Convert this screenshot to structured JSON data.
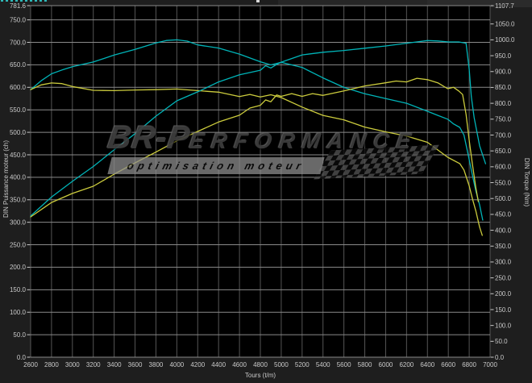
{
  "watermark": {
    "brand_prefix": "BR-P",
    "brand_rest": "ERFORMANCE",
    "tagline": "optimisation moteur"
  },
  "chart_data": {
    "type": "line",
    "title": "",
    "xlabel": "Tours (t/m)",
    "ylabel_left": "DIN Puissance moteur (ch)",
    "ylabel_right": "DIN Torque (Nm)",
    "x_range": [
      2600,
      7000
    ],
    "x_ticks": [
      2600,
      2800,
      3000,
      3200,
      3400,
      3600,
      3800,
      4000,
      4200,
      4400,
      4600,
      4800,
      5000,
      5200,
      5400,
      5600,
      5800,
      6000,
      6200,
      6400,
      6600,
      6800,
      7000
    ],
    "y_left_range": [
      0,
      781.6
    ],
    "y_left_ticks": [
      781.6,
      750,
      700,
      650,
      600,
      550,
      500,
      450,
      400,
      350,
      300,
      250,
      200,
      150,
      100,
      50,
      0
    ],
    "y_right_range": [
      0,
      1107.7
    ],
    "y_right_ticks": [
      1107.7,
      1050,
      1000,
      950,
      900,
      850,
      800,
      750,
      700,
      650,
      600,
      550,
      500,
      450,
      400,
      350,
      300,
      250,
      200,
      150,
      100,
      50,
      0
    ],
    "grid": true,
    "legend_position": "none",
    "colors": {
      "plot_bg": "#000000",
      "grid_h": "#8a8a8a",
      "grid_v": "#555555",
      "tick_text": "#c9c9c9",
      "cyan_series": "#00b4b8",
      "yellow_series": "#cccc3d"
    },
    "series": [
      {
        "name": "torque-modified",
        "axis": "right",
        "color": "#00b4b8",
        "points": [
          [
            2600,
            843
          ],
          [
            2700,
            871
          ],
          [
            2800,
            893
          ],
          [
            2900,
            905
          ],
          [
            3000,
            915
          ],
          [
            3100,
            923
          ],
          [
            3200,
            930
          ],
          [
            3400,
            952
          ],
          [
            3600,
            970
          ],
          [
            3800,
            990
          ],
          [
            3900,
            998
          ],
          [
            4000,
            1000
          ],
          [
            4100,
            996
          ],
          [
            4200,
            984
          ],
          [
            4400,
            974
          ],
          [
            4600,
            955
          ],
          [
            4800,
            931
          ],
          [
            4900,
            921
          ],
          [
            5000,
            929
          ],
          [
            5100,
            921
          ],
          [
            5200,
            913
          ],
          [
            5400,
            880
          ],
          [
            5600,
            850
          ],
          [
            5800,
            830
          ],
          [
            6000,
            815
          ],
          [
            6200,
            800
          ],
          [
            6400,
            775
          ],
          [
            6500,
            762
          ],
          [
            6594,
            750
          ],
          [
            6650,
            735
          ],
          [
            6710,
            724
          ],
          [
            6750,
            700
          ],
          [
            6787,
            643
          ],
          [
            6820,
            590
          ],
          [
            6864,
            523
          ],
          [
            6900,
            480
          ],
          [
            6930,
            432
          ]
        ]
      },
      {
        "name": "torque-original",
        "axis": "right",
        "color": "#cccc3d",
        "points": [
          [
            2600,
            843
          ],
          [
            2700,
            858
          ],
          [
            2800,
            864
          ],
          [
            2900,
            862
          ],
          [
            3000,
            853
          ],
          [
            3200,
            841
          ],
          [
            3400,
            840
          ],
          [
            3600,
            842
          ],
          [
            3800,
            843
          ],
          [
            4000,
            845
          ],
          [
            4200,
            840
          ],
          [
            4400,
            835
          ],
          [
            4600,
            821
          ],
          [
            4700,
            828
          ],
          [
            4800,
            820
          ],
          [
            4900,
            827
          ],
          [
            5000,
            818
          ],
          [
            5200,
            788
          ],
          [
            5400,
            762
          ],
          [
            5600,
            748
          ],
          [
            5800,
            725
          ],
          [
            6000,
            710
          ],
          [
            6200,
            697
          ],
          [
            6400,
            677
          ],
          [
            6594,
            630
          ],
          [
            6710,
            610
          ],
          [
            6750,
            590
          ],
          [
            6800,
            540
          ],
          [
            6830,
            500
          ],
          [
            6864,
            460
          ],
          [
            6900,
            410
          ],
          [
            6925,
            384
          ]
        ]
      },
      {
        "name": "power-modified",
        "axis": "left",
        "color": "#00b4b8",
        "points": [
          [
            2600,
            314
          ],
          [
            2800,
            356
          ],
          [
            3000,
            391
          ],
          [
            3200,
            424
          ],
          [
            3400,
            461
          ],
          [
            3600,
            497
          ],
          [
            3800,
            536
          ],
          [
            4000,
            570
          ],
          [
            4200,
            590
          ],
          [
            4400,
            612
          ],
          [
            4600,
            628
          ],
          [
            4800,
            638
          ],
          [
            4850,
            648
          ],
          [
            4900,
            643
          ],
          [
            4956,
            651
          ],
          [
            5000,
            656
          ],
          [
            5200,
            672
          ],
          [
            5400,
            678
          ],
          [
            5600,
            682
          ],
          [
            5800,
            687
          ],
          [
            6000,
            692
          ],
          [
            6200,
            698
          ],
          [
            6400,
            704
          ],
          [
            6500,
            703
          ],
          [
            6600,
            701
          ],
          [
            6700,
            701
          ],
          [
            6770,
            698
          ],
          [
            6800,
            640
          ],
          [
            6820,
            580
          ],
          [
            6847,
            533
          ],
          [
            6900,
            470
          ],
          [
            6957,
            430
          ]
        ]
      },
      {
        "name": "power-original",
        "axis": "left",
        "color": "#cccc3d",
        "points": [
          [
            2600,
            312
          ],
          [
            2800,
            344
          ],
          [
            3000,
            364
          ],
          [
            3200,
            380
          ],
          [
            3400,
            407
          ],
          [
            3600,
            432
          ],
          [
            3800,
            456
          ],
          [
            4000,
            481
          ],
          [
            4200,
            502
          ],
          [
            4400,
            523
          ],
          [
            4600,
            538
          ],
          [
            4700,
            554
          ],
          [
            4800,
            560
          ],
          [
            4850,
            572
          ],
          [
            4900,
            568
          ],
          [
            4956,
            583
          ],
          [
            5000,
            580
          ],
          [
            5100,
            586
          ],
          [
            5200,
            580
          ],
          [
            5300,
            586
          ],
          [
            5400,
            582
          ],
          [
            5600,
            592
          ],
          [
            5800,
            603
          ],
          [
            6000,
            610
          ],
          [
            6100,
            614
          ],
          [
            6200,
            612
          ],
          [
            6300,
            620
          ],
          [
            6400,
            617
          ],
          [
            6500,
            610
          ],
          [
            6594,
            597
          ],
          [
            6650,
            600
          ],
          [
            6700,
            592
          ],
          [
            6737,
            584
          ],
          [
            6770,
            540
          ],
          [
            6800,
            482
          ],
          [
            6830,
            430
          ],
          [
            6864,
            376
          ],
          [
            6887,
            346
          ]
        ]
      }
    ]
  }
}
